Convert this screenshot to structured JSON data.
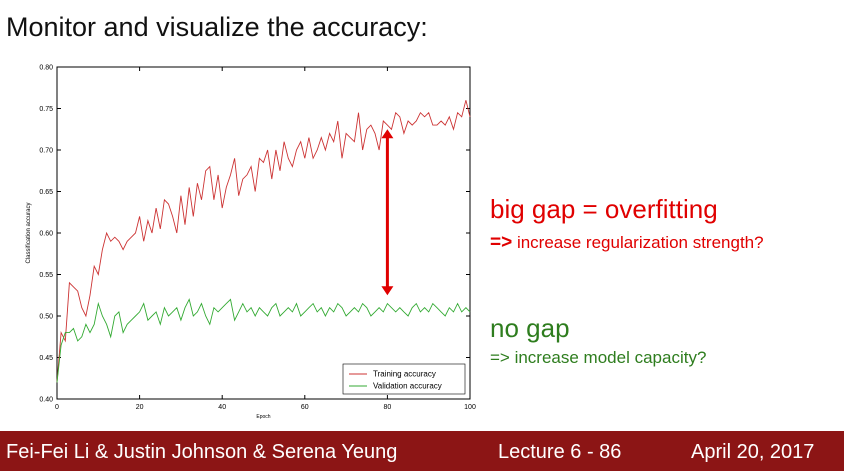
{
  "slide": {
    "title": "Monitor and visualize the accuracy:",
    "annotation_big_gap": "big gap = overfitting",
    "annotation_big_gap_arrow": "=>",
    "annotation_big_gap_sub": "increase regularization strength?",
    "annotation_no_gap": "no gap",
    "annotation_no_gap_sub": "=> increase model capacity?",
    "colors": {
      "red": "#e00000",
      "green": "#2e7d1e",
      "footer_bg": "#8c1515"
    }
  },
  "footer": {
    "authors": "Fei-Fei Li & Justin Johnson & Serena Yeung",
    "lecture": "Lecture 6 - 86",
    "date": "April 20, 2017"
  },
  "chart_data": {
    "type": "line",
    "xlabel": "Epoch",
    "ylabel": "Classification accuracy",
    "xlim": [
      0,
      100
    ],
    "ylim": [
      0.4,
      0.8
    ],
    "xticks": [
      0,
      20,
      40,
      60,
      80,
      100
    ],
    "yticks": [
      0.4,
      0.45,
      0.5,
      0.55,
      0.6,
      0.65,
      0.7,
      0.75,
      0.8
    ],
    "grid": false,
    "legend": "bottom-right",
    "series": [
      {
        "name": "Training accuracy",
        "color": "#cc3333",
        "x": [
          0,
          1,
          2,
          3,
          4,
          5,
          6,
          7,
          8,
          9,
          10,
          11,
          12,
          13,
          14,
          15,
          16,
          17,
          18,
          19,
          20,
          21,
          22,
          23,
          24,
          25,
          26,
          27,
          28,
          29,
          30,
          31,
          32,
          33,
          34,
          35,
          36,
          37,
          38,
          39,
          40,
          41,
          42,
          43,
          44,
          45,
          46,
          47,
          48,
          49,
          50,
          51,
          52,
          53,
          54,
          55,
          56,
          57,
          58,
          59,
          60,
          61,
          62,
          63,
          64,
          65,
          66,
          67,
          68,
          69,
          70,
          71,
          72,
          73,
          74,
          75,
          76,
          77,
          78,
          79,
          80,
          81,
          82,
          83,
          84,
          85,
          86,
          87,
          88,
          89,
          90,
          91,
          92,
          93,
          94,
          95,
          96,
          97,
          98,
          99,
          100
        ],
        "y": [
          0.42,
          0.48,
          0.47,
          0.54,
          0.535,
          0.53,
          0.51,
          0.5,
          0.525,
          0.56,
          0.55,
          0.58,
          0.6,
          0.59,
          0.595,
          0.59,
          0.58,
          0.59,
          0.595,
          0.6,
          0.62,
          0.59,
          0.615,
          0.6,
          0.63,
          0.605,
          0.64,
          0.635,
          0.62,
          0.6,
          0.645,
          0.61,
          0.655,
          0.62,
          0.66,
          0.64,
          0.675,
          0.68,
          0.64,
          0.67,
          0.63,
          0.655,
          0.67,
          0.69,
          0.645,
          0.665,
          0.67,
          0.68,
          0.65,
          0.69,
          0.685,
          0.7,
          0.665,
          0.7,
          0.675,
          0.71,
          0.69,
          0.68,
          0.7,
          0.71,
          0.69,
          0.715,
          0.69,
          0.7,
          0.715,
          0.7,
          0.72,
          0.71,
          0.735,
          0.69,
          0.72,
          0.715,
          0.71,
          0.745,
          0.7,
          0.725,
          0.73,
          0.72,
          0.7,
          0.735,
          0.73,
          0.725,
          0.745,
          0.74,
          0.72,
          0.735,
          0.73,
          0.735,
          0.745,
          0.74,
          0.745,
          0.73,
          0.73,
          0.735,
          0.73,
          0.74,
          0.725,
          0.745,
          0.74,
          0.76,
          0.74
        ]
      },
      {
        "name": "Validation accuracy",
        "color": "#33aa33",
        "x": [
          0,
          1,
          2,
          3,
          4,
          5,
          6,
          7,
          8,
          9,
          10,
          11,
          12,
          13,
          14,
          15,
          16,
          17,
          18,
          19,
          20,
          21,
          22,
          23,
          24,
          25,
          26,
          27,
          28,
          29,
          30,
          31,
          32,
          33,
          34,
          35,
          36,
          37,
          38,
          39,
          40,
          41,
          42,
          43,
          44,
          45,
          46,
          47,
          48,
          49,
          50,
          51,
          52,
          53,
          54,
          55,
          56,
          57,
          58,
          59,
          60,
          61,
          62,
          63,
          64,
          65,
          66,
          67,
          68,
          69,
          70,
          71,
          72,
          73,
          74,
          75,
          76,
          77,
          78,
          79,
          80,
          81,
          82,
          83,
          84,
          85,
          86,
          87,
          88,
          89,
          90,
          91,
          92,
          93,
          94,
          95,
          96,
          97,
          98,
          99,
          100
        ],
        "y": [
          0.42,
          0.465,
          0.48,
          0.48,
          0.485,
          0.47,
          0.475,
          0.49,
          0.48,
          0.49,
          0.515,
          0.5,
          0.49,
          0.475,
          0.5,
          0.505,
          0.48,
          0.49,
          0.495,
          0.5,
          0.505,
          0.515,
          0.495,
          0.5,
          0.505,
          0.49,
          0.51,
          0.5,
          0.505,
          0.51,
          0.495,
          0.51,
          0.52,
          0.5,
          0.505,
          0.515,
          0.5,
          0.49,
          0.51,
          0.505,
          0.51,
          0.515,
          0.52,
          0.495,
          0.505,
          0.515,
          0.505,
          0.51,
          0.5,
          0.51,
          0.505,
          0.5,
          0.51,
          0.515,
          0.5,
          0.505,
          0.51,
          0.505,
          0.515,
          0.5,
          0.505,
          0.51,
          0.515,
          0.505,
          0.51,
          0.5,
          0.51,
          0.505,
          0.515,
          0.51,
          0.5,
          0.505,
          0.51,
          0.505,
          0.515,
          0.51,
          0.5,
          0.505,
          0.51,
          0.505,
          0.515,
          0.51,
          0.505,
          0.51,
          0.505,
          0.5,
          0.51,
          0.515,
          0.505,
          0.51,
          0.505,
          0.515,
          0.51,
          0.505,
          0.5,
          0.51,
          0.505,
          0.515,
          0.505,
          0.51,
          0.505
        ]
      }
    ]
  }
}
